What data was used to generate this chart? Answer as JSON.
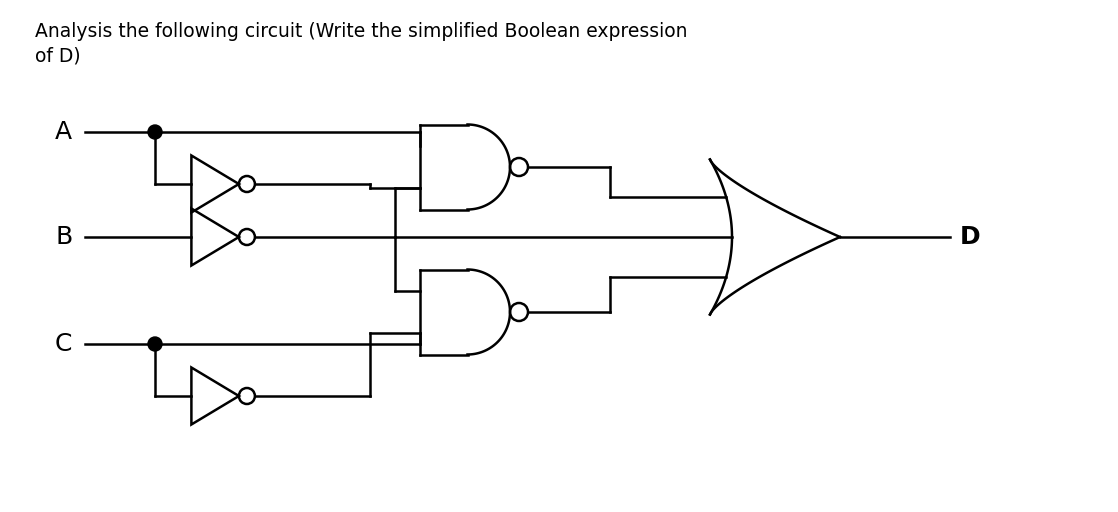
{
  "title_line1": "Analysis the following circuit (Write the simplified Boolean expression",
  "title_line2": "of D)",
  "title_fontsize": 13.5,
  "bg_color": "#ffffff",
  "line_color": "#000000",
  "label_A": "A",
  "label_B": "B",
  "label_C": "C",
  "label_D": "D",
  "figsize": [
    11.18,
    5.12
  ],
  "dpi": 100
}
